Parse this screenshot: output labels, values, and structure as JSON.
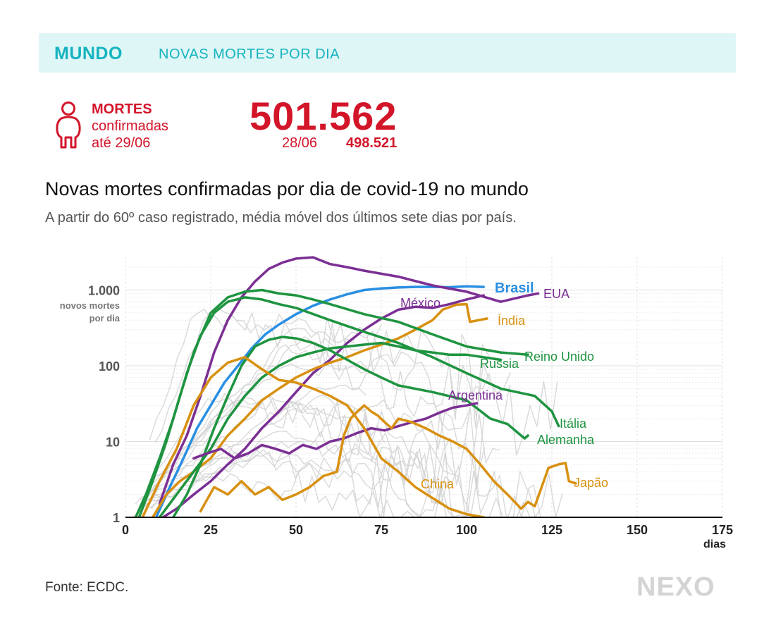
{
  "header": {
    "section": "MUNDO",
    "subsection": "NOVAS MORTES POR DIA"
  },
  "kpi": {
    "label_bold": "MORTES",
    "label_line2": "confirmadas",
    "label_line3": "até 29/06",
    "value": "501.562",
    "prev_date": "28/06",
    "prev_value": "498.521"
  },
  "colors": {
    "accent": "#14b3bf",
    "kpi": "#d3152a",
    "green": "#1e9440",
    "purple": "#7b2f94",
    "orange": "#d89010",
    "blue": "#2a8fe3",
    "grey": "#cccccc"
  },
  "icons": {
    "person": "person-icon"
  },
  "chart_data": {
    "type": "line",
    "title": "Novas mortes confirmadas por dia de covid-19 no mundo",
    "subtitle": "A partir do 60º caso registrado, média móvel dos últimos sete dias por país.",
    "xlabel": "dias",
    "ylabel": "novos mortes por dia",
    "y_scale": "log",
    "xlim": [
      0,
      175
    ],
    "ylim": [
      1,
      3000
    ],
    "x_ticks": [
      "0",
      "25",
      "50",
      "75",
      "100",
      "125",
      "150",
      "175"
    ],
    "y_ticks": [
      {
        "value": 1,
        "label": "1"
      },
      {
        "value": 10,
        "label": "10"
      },
      {
        "value": 100,
        "label": "100"
      },
      {
        "value": 1000,
        "label": "1.000"
      }
    ],
    "y_unit_label_lines": [
      "novos mortes",
      "por dia"
    ],
    "grid": true,
    "series": [
      {
        "name": "Brasil",
        "color": "#2a8fe3",
        "bold_label": true,
        "x": [
          9,
          13,
          17,
          21,
          25,
          29,
          33,
          37,
          41,
          45,
          50,
          55,
          60,
          65,
          70,
          75,
          80,
          85,
          90,
          95,
          100,
          105
        ],
        "y": [
          1,
          2.5,
          6,
          15,
          30,
          60,
          100,
          170,
          260,
          350,
          480,
          620,
          750,
          880,
          1000,
          1050,
          1080,
          1100,
          1100,
          1090,
          1120,
          1100
        ]
      },
      {
        "name": "EUA",
        "color": "#7b2f94",
        "x": [
          10,
          14,
          18,
          22,
          26,
          30,
          34,
          38,
          42,
          46,
          50,
          55,
          60,
          65,
          70,
          80,
          90,
          100,
          110,
          118,
          121
        ],
        "y": [
          1.5,
          5,
          12,
          40,
          150,
          400,
          800,
          1300,
          1900,
          2300,
          2600,
          2700,
          2200,
          2000,
          1800,
          1500,
          1150,
          950,
          700,
          850,
          900
        ]
      },
      {
        "name": "México",
        "color": "#7b2f94",
        "x": [
          11,
          15,
          20,
          25,
          30,
          35,
          40,
          45,
          50,
          55,
          60,
          65,
          70,
          75,
          80,
          85,
          90,
          95,
          100,
          105
        ],
        "y": [
          1,
          1.3,
          2,
          3,
          5,
          8,
          15,
          25,
          45,
          80,
          120,
          200,
          300,
          420,
          550,
          600,
          580,
          650,
          750,
          850
        ]
      },
      {
        "name": "Índia",
        "color": "#d89010",
        "x": [
          8,
          12,
          16,
          20,
          25,
          30,
          35,
          40,
          45,
          50,
          55,
          60,
          65,
          70,
          75,
          80,
          85,
          90,
          93,
          97,
          100,
          101,
          106
        ],
        "y": [
          1,
          2,
          3,
          4,
          6,
          12,
          20,
          35,
          50,
          70,
          90,
          110,
          130,
          160,
          190,
          230,
          300,
          400,
          550,
          640,
          650,
          380,
          420
        ]
      },
      {
        "name": "Reino Unido",
        "color": "#1e9440",
        "x": [
          4,
          8,
          12,
          16,
          20,
          25,
          30,
          35,
          40,
          45,
          50,
          55,
          60,
          70,
          80,
          90,
          100,
          110,
          118
        ],
        "y": [
          1,
          3,
          10,
          40,
          150,
          500,
          800,
          950,
          1000,
          900,
          850,
          750,
          650,
          480,
          380,
          260,
          180,
          150,
          140
        ]
      },
      {
        "name": "Russia",
        "color": "#1e9440",
        "x": [
          10,
          15,
          20,
          25,
          30,
          35,
          40,
          45,
          50,
          55,
          60,
          65,
          70,
          75,
          80,
          85,
          90,
          95,
          100,
          110
        ],
        "y": [
          1,
          2,
          4,
          8,
          20,
          40,
          70,
          100,
          130,
          150,
          170,
          180,
          190,
          200,
          180,
          160,
          150,
          140,
          140,
          120
        ]
      },
      {
        "name": "Itália",
        "color": "#1e9440",
        "x": [
          3,
          6,
          10,
          14,
          18,
          22,
          26,
          30,
          35,
          40,
          45,
          50,
          60,
          70,
          80,
          90,
          100,
          110,
          120,
          125,
          127
        ],
        "y": [
          1,
          2,
          6,
          20,
          80,
          250,
          500,
          700,
          800,
          750,
          650,
          580,
          400,
          280,
          200,
          130,
          80,
          50,
          40,
          25,
          16
        ]
      },
      {
        "name": "Alemanha",
        "color": "#1e9440",
        "x": [
          14,
          18,
          22,
          26,
          30,
          34,
          38,
          42,
          46,
          50,
          55,
          60,
          65,
          70,
          75,
          80,
          90,
          100,
          107,
          112,
          117,
          118
        ],
        "y": [
          1,
          2,
          5,
          15,
          40,
          100,
          180,
          220,
          240,
          230,
          200,
          160,
          120,
          90,
          70,
          55,
          45,
          35,
          20,
          17,
          11,
          12
        ]
      },
      {
        "name": "Argentina",
        "color": "#7b2f94",
        "x": [
          20,
          24,
          28,
          32,
          36,
          40,
          44,
          48,
          52,
          56,
          60,
          64,
          68,
          72,
          76,
          80,
          84,
          88,
          92,
          96,
          100,
          103
        ],
        "y": [
          6,
          7,
          8,
          6,
          7,
          9,
          8,
          7,
          9,
          8,
          10,
          11,
          13,
          15,
          14,
          16,
          18,
          20,
          24,
          28,
          30,
          32
        ]
      },
      {
        "name": "China",
        "color": "#d89010",
        "x": [
          5,
          10,
          15,
          20,
          25,
          30,
          35,
          40,
          45,
          50,
          55,
          60,
          65,
          70,
          75,
          80,
          85,
          90,
          95,
          100,
          105
        ],
        "y": [
          1,
          3,
          8,
          30,
          70,
          110,
          130,
          90,
          65,
          60,
          50,
          40,
          30,
          15,
          6,
          4,
          2.5,
          1.8,
          1.3,
          1.1,
          1
        ]
      },
      {
        "name": "Japão",
        "color": "#d89010",
        "x": [
          22,
          26,
          30,
          34,
          38,
          42,
          46,
          50,
          54,
          58,
          62,
          64,
          66,
          68,
          70,
          72,
          74,
          76,
          78,
          80,
          84,
          88,
          92,
          96,
          100,
          104,
          108,
          112,
          116,
          118,
          120,
          124,
          127,
          129,
          130,
          132
        ],
        "y": [
          1.2,
          2.5,
          2,
          3,
          2,
          2.5,
          1.7,
          2,
          2.5,
          3.5,
          4,
          12,
          20,
          25,
          30,
          25,
          22,
          18,
          15,
          20,
          18,
          15,
          12,
          10,
          8,
          5,
          3,
          2,
          1.3,
          1.6,
          1.4,
          4.5,
          5,
          5.2,
          3,
          2.8
        ]
      }
    ]
  },
  "source": "Fonte: ECDC.",
  "brand": "NEXO"
}
